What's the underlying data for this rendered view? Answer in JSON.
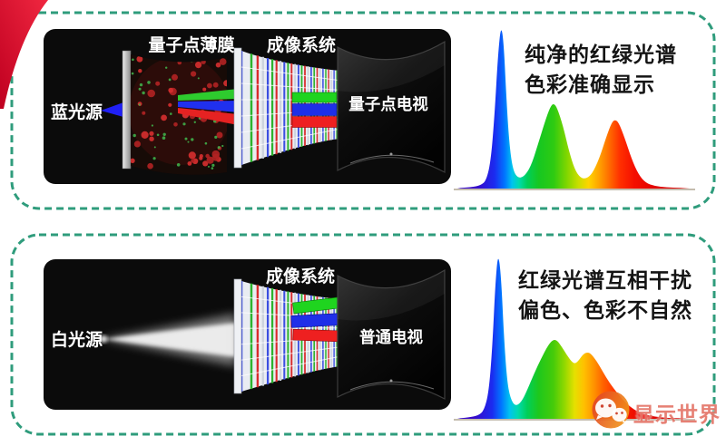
{
  "colors": {
    "panel_border": "#2f9c7c",
    "corner_ribbon_red": "#d8102e",
    "box_background": "#0b0b0b",
    "caption_text": "#141414",
    "watermark_red": "#e26a5c"
  },
  "panels": {
    "quantum": {
      "labels": {
        "source": "蓝光源",
        "film": "量子点薄膜",
        "imaging": "成像系统",
        "tv": "量子点电视"
      },
      "caption": {
        "line1": "纯净的红绿光谱",
        "line2": "色彩准确显示"
      },
      "spectrum": {
        "type": "area",
        "note": "three well-separated narrow emission peaks (pure RGB)",
        "peaks": [
          {
            "color": "blue",
            "rel_x": 0.188,
            "rel_height": 1.0
          },
          {
            "color": "green",
            "rel_x": 0.415,
            "rel_height": 0.52
          },
          {
            "color": "red",
            "rel_x": 0.68,
            "rel_height": 0.42
          }
        ],
        "curve": [
          [
            0.015,
            0.004
          ],
          [
            0.06,
            0.008
          ],
          [
            0.1,
            0.02
          ],
          [
            0.125,
            0.05
          ],
          [
            0.145,
            0.18
          ],
          [
            0.16,
            0.45
          ],
          [
            0.175,
            0.82
          ],
          [
            0.188,
            1.0
          ],
          [
            0.2,
            0.88
          ],
          [
            0.212,
            0.52
          ],
          [
            0.225,
            0.25
          ],
          [
            0.24,
            0.11
          ],
          [
            0.26,
            0.065
          ],
          [
            0.285,
            0.07
          ],
          [
            0.315,
            0.13
          ],
          [
            0.345,
            0.26
          ],
          [
            0.375,
            0.4
          ],
          [
            0.4,
            0.5
          ],
          [
            0.415,
            0.52
          ],
          [
            0.43,
            0.49
          ],
          [
            0.455,
            0.38
          ],
          [
            0.48,
            0.23
          ],
          [
            0.505,
            0.115
          ],
          [
            0.53,
            0.065
          ],
          [
            0.555,
            0.06
          ],
          [
            0.58,
            0.09
          ],
          [
            0.61,
            0.18
          ],
          [
            0.64,
            0.31
          ],
          [
            0.665,
            0.405
          ],
          [
            0.68,
            0.42
          ],
          [
            0.695,
            0.4
          ],
          [
            0.72,
            0.31
          ],
          [
            0.75,
            0.18
          ],
          [
            0.78,
            0.085
          ],
          [
            0.81,
            0.035
          ],
          [
            0.85,
            0.015
          ],
          [
            0.9,
            0.007
          ],
          [
            0.96,
            0.004
          ]
        ],
        "gradient": [
          [
            0.08,
            "#3708c8"
          ],
          [
            0.16,
            "#1b2bf0"
          ],
          [
            0.205,
            "#0077ff"
          ],
          [
            0.235,
            "#00c3f0"
          ],
          [
            0.265,
            "#00dbae"
          ],
          [
            0.3,
            "#00cf5a"
          ],
          [
            0.35,
            "#16c721"
          ],
          [
            0.415,
            "#2ecb12"
          ],
          [
            0.47,
            "#7fd600"
          ],
          [
            0.52,
            "#c8de00"
          ],
          [
            0.565,
            "#ffd400"
          ],
          [
            0.61,
            "#ffa300"
          ],
          [
            0.655,
            "#ff6a00"
          ],
          [
            0.7,
            "#ff3000"
          ],
          [
            0.76,
            "#f50f00"
          ],
          [
            0.88,
            "#dc0000"
          ]
        ]
      }
    },
    "normal": {
      "labels": {
        "source": "白光源",
        "imaging": "成像系统",
        "tv": "普通电视"
      },
      "caption": {
        "line1": "红绿光谱互相干扰",
        "line2": "偏色、色彩不自然"
      },
      "spectrum": {
        "type": "area",
        "note": "blue peak plus broad overlapping green/orange humps (interference)",
        "peaks": [
          {
            "color": "blue",
            "rel_x": 0.175,
            "rel_height": 1.0
          },
          {
            "color": "green",
            "rel_x": 0.412,
            "rel_height": 0.475
          },
          {
            "color": "orange",
            "rel_x": 0.558,
            "rel_height": 0.4
          }
        ],
        "curve": [
          [
            0.015,
            0.004
          ],
          [
            0.05,
            0.008
          ],
          [
            0.09,
            0.02
          ],
          [
            0.115,
            0.05
          ],
          [
            0.135,
            0.16
          ],
          [
            0.15,
            0.42
          ],
          [
            0.163,
            0.8
          ],
          [
            0.175,
            1.0
          ],
          [
            0.188,
            0.86
          ],
          [
            0.2,
            0.5
          ],
          [
            0.213,
            0.24
          ],
          [
            0.228,
            0.12
          ],
          [
            0.25,
            0.075
          ],
          [
            0.275,
            0.1
          ],
          [
            0.3,
            0.17
          ],
          [
            0.33,
            0.27
          ],
          [
            0.36,
            0.36
          ],
          [
            0.39,
            0.44
          ],
          [
            0.412,
            0.475
          ],
          [
            0.43,
            0.47
          ],
          [
            0.45,
            0.43
          ],
          [
            0.47,
            0.385
          ],
          [
            0.49,
            0.345
          ],
          [
            0.505,
            0.33
          ],
          [
            0.52,
            0.345
          ],
          [
            0.54,
            0.385
          ],
          [
            0.558,
            0.4
          ],
          [
            0.575,
            0.39
          ],
          [
            0.6,
            0.345
          ],
          [
            0.625,
            0.285
          ],
          [
            0.655,
            0.215
          ],
          [
            0.69,
            0.15
          ],
          [
            0.725,
            0.095
          ],
          [
            0.76,
            0.055
          ],
          [
            0.8,
            0.028
          ],
          [
            0.85,
            0.012
          ],
          [
            0.91,
            0.005
          ],
          [
            0.96,
            0.003
          ]
        ],
        "gradient": [
          [
            0.07,
            "#3708c8"
          ],
          [
            0.15,
            "#1b2bf0"
          ],
          [
            0.19,
            "#0077ff"
          ],
          [
            0.225,
            "#00c3f0"
          ],
          [
            0.26,
            "#00dbae"
          ],
          [
            0.3,
            "#00cf5a"
          ],
          [
            0.35,
            "#1ec81c"
          ],
          [
            0.412,
            "#44cb0a"
          ],
          [
            0.46,
            "#8fd800"
          ],
          [
            0.505,
            "#e6e000"
          ],
          [
            0.545,
            "#ffc000"
          ],
          [
            0.585,
            "#ff9600"
          ],
          [
            0.63,
            "#ff6000"
          ],
          [
            0.69,
            "#ff2a00"
          ],
          [
            0.78,
            "#ea0600"
          ],
          [
            0.9,
            "#d80000"
          ]
        ]
      }
    }
  },
  "watermark": {
    "label": "显示世界",
    "icon": "wechat-icon"
  }
}
